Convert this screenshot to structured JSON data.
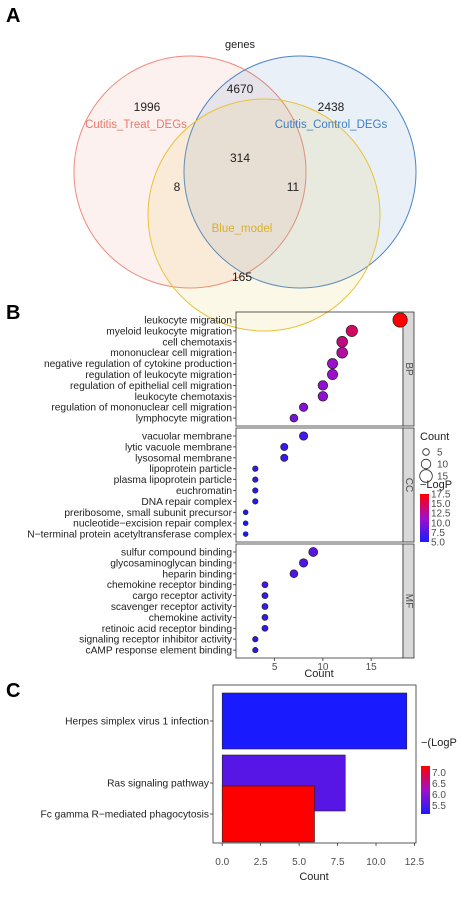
{
  "panels": {
    "a": "A",
    "b": "B",
    "c": "C"
  },
  "chart_data": [
    {
      "type": "venn",
      "title": "genes",
      "sets": [
        {
          "name": "Cutitis_Treat_DEGs",
          "color": "#f08a7e"
        },
        {
          "name": "Cutitis_Control_DEGs",
          "color": "#4a86c8"
        },
        {
          "name": "Blue_model",
          "color": "#e8c23a"
        }
      ],
      "regions": [
        {
          "sets": [
            "Cutitis_Treat_DEGs"
          ],
          "value": 1996
        },
        {
          "sets": [
            "Cutitis_Treat_DEGs",
            "Cutitis_Control_DEGs"
          ],
          "value": 4670
        },
        {
          "sets": [
            "Cutitis_Control_DEGs"
          ],
          "value": 2438
        },
        {
          "sets": [
            "Cutitis_Treat_DEGs",
            "Cutitis_Control_DEGs",
            "Blue_model"
          ],
          "value": 314
        },
        {
          "sets": [
            "Cutitis_Treat_DEGs",
            "Blue_model"
          ],
          "value": 8
        },
        {
          "sets": [
            "Cutitis_Control_DEGs",
            "Blue_model"
          ],
          "value": 11
        },
        {
          "sets": [
            "Blue_model"
          ],
          "value": 165
        }
      ]
    },
    {
      "type": "scatter",
      "xlabel": "Count",
      "xlim": [
        1,
        18.3
      ],
      "xticks": [
        5,
        10,
        15
      ],
      "size_legend": {
        "title": "Count",
        "values": [
          5,
          10,
          15
        ]
      },
      "color_legend": {
        "title": "−LogP",
        "ticks": [
          17.5,
          15.0,
          12.5,
          10.0,
          7.5,
          5.0
        ],
        "range": [
          5.0,
          17.5
        ],
        "low_color": "#1a1aff",
        "mid_color": "#a010c8",
        "high_color": "#ff0000"
      },
      "facets": [
        {
          "name": "BP",
          "items": [
            {
              "term": "leukocyte migration",
              "count": 18,
              "logp": 17.5
            },
            {
              "term": "myeloid leukocyte migration",
              "count": 13,
              "logp": 14.5
            },
            {
              "term": "cell chemotaxis",
              "count": 12,
              "logp": 13.5
            },
            {
              "term": "mononuclear cell migration",
              "count": 12,
              "logp": 12.5
            },
            {
              "term": "negative regulation of cytokine production",
              "count": 11,
              "logp": 11.0
            },
            {
              "term": "regulation of leukocyte migration",
              "count": 11,
              "logp": 11.0
            },
            {
              "term": "regulation of epithelial cell migration",
              "count": 10,
              "logp": 10.5
            },
            {
              "term": "leukocyte chemotaxis",
              "count": 10,
              "logp": 10.5
            },
            {
              "term": "regulation of mononuclear cell migration",
              "count": 8,
              "logp": 10.0
            },
            {
              "term": "lymphocyte migration",
              "count": 7,
              "logp": 9.5
            }
          ]
        },
        {
          "name": "CC",
          "items": [
            {
              "term": "vacuolar membrane",
              "count": 8,
              "logp": 7.0
            },
            {
              "term": "lytic vacuole membrane",
              "count": 6,
              "logp": 6.5
            },
            {
              "term": "lysosomal membrane",
              "count": 6,
              "logp": 6.5
            },
            {
              "term": "lipoprotein particle",
              "count": 3,
              "logp": 6.0
            },
            {
              "term": "plasma lipoprotein particle",
              "count": 3,
              "logp": 6.0
            },
            {
              "term": "euchromatin",
              "count": 3,
              "logp": 5.5
            },
            {
              "term": "DNA repair complex",
              "count": 3,
              "logp": 5.5
            },
            {
              "term": "preribosome, small subunit precursor",
              "count": 2,
              "logp": 5.0
            },
            {
              "term": "nucleotide−excision repair complex",
              "count": 2,
              "logp": 5.0
            },
            {
              "term": "N−terminal protein acetyltransferase complex",
              "count": 2,
              "logp": 5.0
            }
          ]
        },
        {
          "name": "MF",
          "items": [
            {
              "term": "sulfur compound binding",
              "count": 9,
              "logp": 8.0
            },
            {
              "term": "glycosaminoglycan binding",
              "count": 8,
              "logp": 7.5
            },
            {
              "term": "heparin binding",
              "count": 7,
              "logp": 7.5
            },
            {
              "term": "chemokine receptor binding",
              "count": 4,
              "logp": 7.0
            },
            {
              "term": "cargo receptor activity",
              "count": 4,
              "logp": 6.5
            },
            {
              "term": "scavenger receptor activity",
              "count": 4,
              "logp": 6.5
            },
            {
              "term": "chemokine activity",
              "count": 4,
              "logp": 6.5
            },
            {
              "term": "retinoic acid receptor binding",
              "count": 4,
              "logp": 6.0
            },
            {
              "term": "signaling receptor inhibitor activity",
              "count": 3,
              "logp": 5.5
            },
            {
              "term": "cAMP response element binding",
              "count": 3,
              "logp": 5.5
            }
          ]
        }
      ]
    },
    {
      "type": "bar",
      "orientation": "horizontal",
      "xlabel": "Count",
      "xlim": [
        -0.6,
        12.6
      ],
      "xticks": [
        0.0,
        2.5,
        5.0,
        7.5,
        10.0,
        12.5
      ],
      "categories": [
        "Herpes simplex virus 1 infection",
        "Ras signaling pathway",
        "Fc gamma R−mediated phagocytosis"
      ],
      "values": [
        12,
        8,
        6
      ],
      "logp": [
        5.1,
        5.6,
        7.3
      ],
      "color_legend": {
        "title": "−(LogP)",
        "ticks": [
          7.0,
          6.5,
          6.0,
          5.5
        ],
        "range": [
          5.1,
          7.3
        ],
        "low_color": "#1a1aff",
        "mid_color": "#a010c8",
        "high_color": "#ff0000"
      }
    }
  ]
}
